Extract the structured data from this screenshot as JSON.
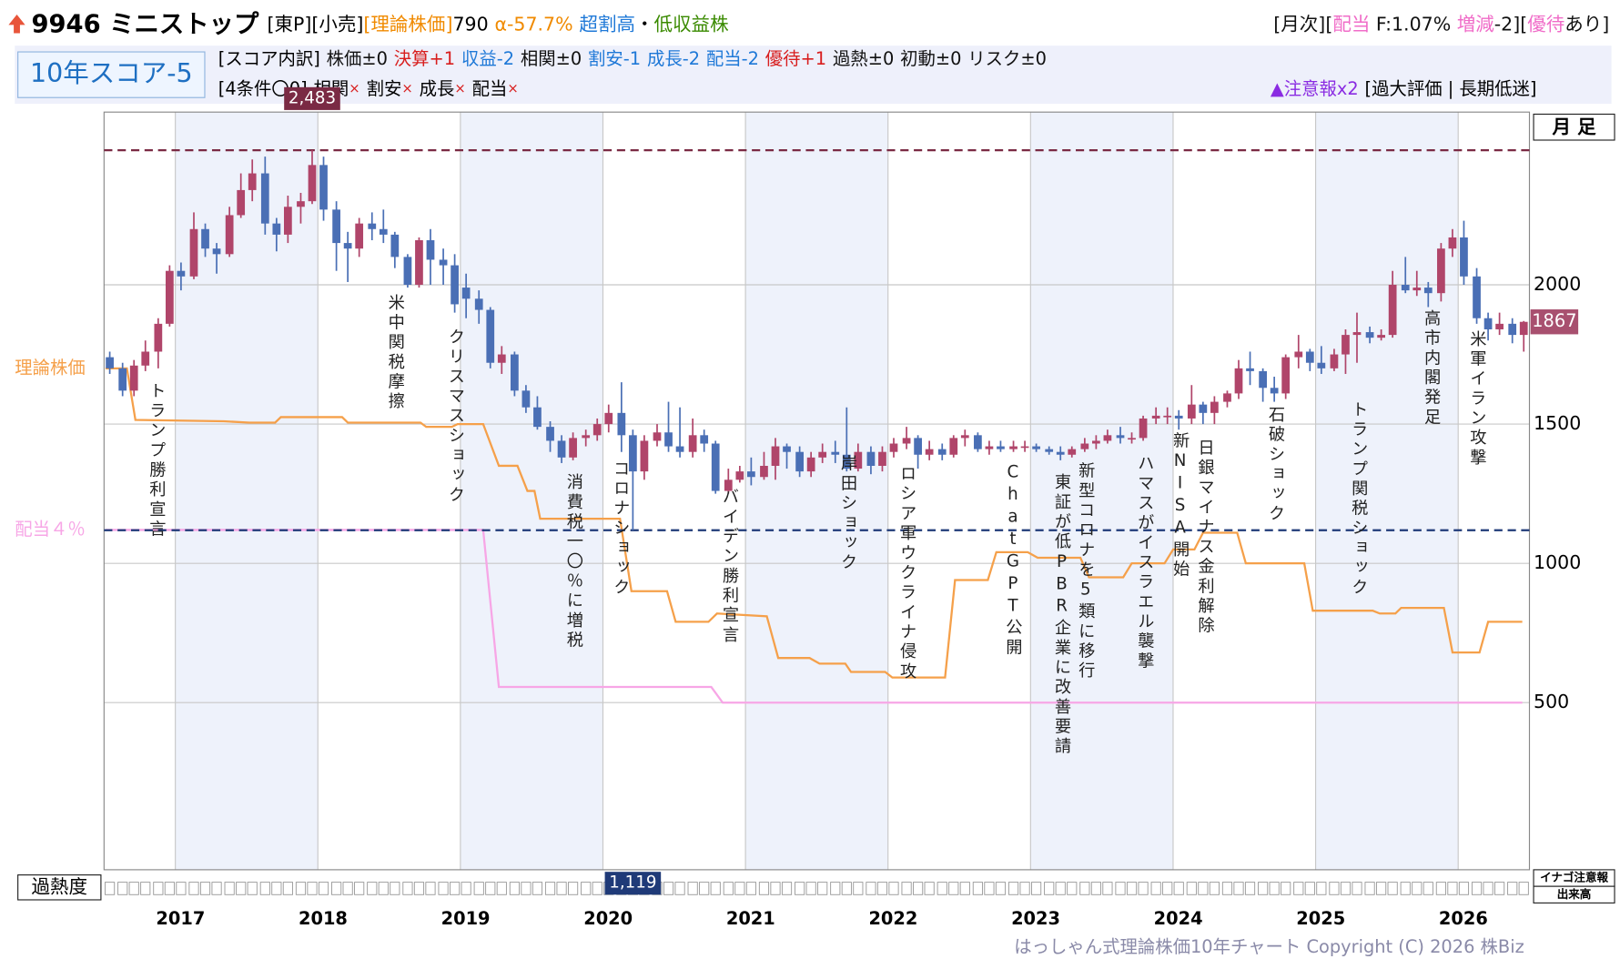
{
  "header": {
    "code_name": "9946 ミニストップ",
    "tags": "[東P][小売]",
    "theory_tag": "[理論株価]",
    "theory_price": "790",
    "alpha": "α-57.7%",
    "valuation": "超割高",
    "dot": "・",
    "profile": "低収益株",
    "monthly": [
      {
        "text": "[月次][",
        "color": "#111"
      },
      {
        "text": "配当",
        "color": "#f06cc8"
      },
      {
        "text": " F:1.07% ",
        "color": "#111"
      },
      {
        "text": "増減",
        "color": "#f06cc8"
      },
      {
        "text": "-2][",
        "color": "#111"
      },
      {
        "text": "優待",
        "color": "#f06cc8"
      },
      {
        "text": "あり]",
        "color": "#111"
      }
    ]
  },
  "score": {
    "badge": "10年スコア-5",
    "breakdown_label": "[スコア内訳]",
    "items": [
      {
        "text": "株価±0",
        "color": "#111"
      },
      {
        "text": "決算+1",
        "color": "#d81e1e"
      },
      {
        "text": "収益-2",
        "color": "#1e78d7"
      },
      {
        "text": "相関±0",
        "color": "#111"
      },
      {
        "text": "割安-1",
        "color": "#1e78d7"
      },
      {
        "text": "成長-2",
        "color": "#1e78d7"
      },
      {
        "text": "配当-2",
        "color": "#1e78d7"
      },
      {
        "text": "優待+1",
        "color": "#d81e1e"
      },
      {
        "text": "過熱±0",
        "color": "#111"
      },
      {
        "text": "初動±0",
        "color": "#111"
      },
      {
        "text": "リスク±0",
        "color": "#111"
      }
    ]
  },
  "conditions": {
    "label": "[4条件〇0]",
    "items": [
      "相関",
      "割安",
      "成長",
      "配当"
    ],
    "mark": "×"
  },
  "warning": {
    "label": "▲注意報x2",
    "detail": "[過大評価 | 長期低迷]"
  },
  "side": {
    "overheat": "過熱度",
    "inago": "イナゴ注意報",
    "volume": "出来高"
  },
  "footer": "はっしゃん式理論株価10年チャート Copyright (C) 2026 株Biz",
  "chart_data": {
    "type": "candlestick",
    "period": "月 足",
    "x": [
      2016.54,
      2016.63,
      2016.71,
      2016.79,
      2016.88,
      2016.96,
      2017.04,
      2017.13,
      2017.21,
      2017.29,
      2017.38,
      2017.46,
      2017.54,
      2017.63,
      2017.71,
      2017.79,
      2017.88,
      2017.96,
      2018.04,
      2018.13,
      2018.21,
      2018.29,
      2018.38,
      2018.46,
      2018.54,
      2018.63,
      2018.71,
      2018.79,
      2018.88,
      2018.96,
      2019.04,
      2019.13,
      2019.21,
      2019.29,
      2019.38,
      2019.46,
      2019.54,
      2019.63,
      2019.71,
      2019.79,
      2019.88,
      2019.96,
      2020.04,
      2020.13,
      2020.21,
      2020.29,
      2020.38,
      2020.46,
      2020.54,
      2020.63,
      2020.71,
      2020.79,
      2020.88,
      2020.96,
      2021.04,
      2021.13,
      2021.21,
      2021.29,
      2021.38,
      2021.46,
      2021.54,
      2021.63,
      2021.71,
      2021.79,
      2021.88,
      2021.96,
      2022.04,
      2022.13,
      2022.21,
      2022.29,
      2022.38,
      2022.46,
      2022.54,
      2022.63,
      2022.71,
      2022.79,
      2022.88,
      2022.96,
      2023.04,
      2023.13,
      2023.21,
      2023.29,
      2023.38,
      2023.46,
      2023.54,
      2023.63,
      2023.71,
      2023.79,
      2023.88,
      2023.96,
      2024.04,
      2024.13,
      2024.21,
      2024.29,
      2024.38,
      2024.46,
      2024.54,
      2024.63,
      2024.71,
      2024.79,
      2024.88,
      2024.96,
      2025.04,
      2025.13,
      2025.21,
      2025.29,
      2025.38,
      2025.46,
      2025.54,
      2025.63,
      2025.71,
      2025.79,
      2025.88,
      2025.96,
      2026.04,
      2026.13,
      2026.21,
      2026.29,
      2026.38,
      2026.46
    ],
    "open": [
      1740,
      1700,
      1620,
      1710,
      1760,
      1860,
      2050,
      2030,
      2200,
      2130,
      2110,
      2250,
      2340,
      2400,
      2220,
      2180,
      2280,
      2300,
      2430,
      2270,
      2150,
      2130,
      2220,
      2200,
      2180,
      2100,
      2000,
      2160,
      2090,
      2070,
      1990,
      1950,
      1910,
      1720,
      1750,
      1620,
      1560,
      1490,
      1440,
      1380,
      1450,
      1460,
      1500,
      1540,
      1460,
      1330,
      1440,
      1470,
      1420,
      1400,
      1460,
      1430,
      1260,
      1300,
      1330,
      1310,
      1350,
      1420,
      1400,
      1330,
      1380,
      1400,
      1390,
      1340,
      1400,
      1350,
      1400,
      1430,
      1450,
      1390,
      1410,
      1390,
      1450,
      1460,
      1410,
      1420,
      1410,
      1420,
      1420,
      1410,
      1400,
      1390,
      1410,
      1430,
      1440,
      1460,
      1450,
      1450,
      1520,
      1530,
      1530,
      1520,
      1570,
      1540,
      1580,
      1610,
      1700,
      1690,
      1630,
      1610,
      1740,
      1760,
      1720,
      1700,
      1750,
      1820,
      1830,
      1810,
      1820,
      2000,
      1980,
      1990,
      1970,
      2130,
      2170,
      2030,
      1880,
      1840,
      1860,
      1820
    ],
    "high": [
      1760,
      1720,
      1730,
      1800,
      1880,
      2070,
      2080,
      2260,
      2220,
      2150,
      2280,
      2400,
      2450,
      2460,
      2240,
      2320,
      2330,
      2483,
      2460,
      2300,
      2190,
      2240,
      2260,
      2270,
      2190,
      2110,
      2170,
      2200,
      2130,
      2110,
      2040,
      1980,
      1920,
      1780,
      1760,
      1640,
      1600,
      1510,
      1460,
      1470,
      1480,
      1520,
      1570,
      1650,
      1480,
      1460,
      1500,
      1580,
      1560,
      1520,
      1480,
      1440,
      1340,
      1350,
      1380,
      1400,
      1450,
      1430,
      1420,
      1400,
      1430,
      1440,
      1560,
      1430,
      1420,
      1420,
      1450,
      1490,
      1460,
      1440,
      1430,
      1460,
      1480,
      1470,
      1440,
      1440,
      1440,
      1440,
      1430,
      1420,
      1420,
      1420,
      1450,
      1460,
      1480,
      1490,
      1470,
      1530,
      1560,
      1560,
      1550,
      1640,
      1580,
      1600,
      1620,
      1730,
      1760,
      1700,
      1670,
      1750,
      1820,
      1770,
      1780,
      1770,
      1840,
      1900,
      1850,
      1840,
      2050,
      2100,
      2050,
      2010,
      2150,
      2200,
      2230,
      2060,
      1900,
      1900,
      1880,
      1870
    ],
    "low": [
      1680,
      1600,
      1600,
      1690,
      1700,
      1850,
      1980,
      2020,
      2100,
      2040,
      2100,
      2240,
      2300,
      2180,
      2120,
      2150,
      2220,
      2290,
      2230,
      2050,
      2010,
      2100,
      2160,
      2150,
      2060,
      1990,
      1990,
      2000,
      2000,
      1900,
      1880,
      1860,
      1700,
      1680,
      1600,
      1540,
      1480,
      1400,
      1360,
      1370,
      1420,
      1440,
      1470,
      1400,
      1119,
      1300,
      1420,
      1400,
      1380,
      1380,
      1400,
      1250,
      1250,
      1290,
      1280,
      1300,
      1300,
      1340,
      1310,
      1310,
      1360,
      1360,
      1330,
      1330,
      1320,
      1330,
      1380,
      1410,
      1340,
      1370,
      1370,
      1380,
      1420,
      1400,
      1390,
      1400,
      1400,
      1400,
      1400,
      1390,
      1370,
      1380,
      1400,
      1410,
      1430,
      1430,
      1430,
      1440,
      1500,
      1500,
      1480,
      1500,
      1500,
      1500,
      1560,
      1590,
      1640,
      1580,
      1580,
      1590,
      1700,
      1690,
      1680,
      1690,
      1680,
      1720,
      1790,
      1800,
      1810,
      1970,
      1960,
      1920,
      1940,
      2100,
      2000,
      1860,
      1800,
      1820,
      1790,
      1760
    ],
    "close": [
      1700,
      1620,
      1710,
      1760,
      1860,
      2050,
      2030,
      2200,
      2130,
      2110,
      2250,
      2340,
      2400,
      2220,
      2180,
      2280,
      2300,
      2430,
      2270,
      2150,
      2130,
      2220,
      2200,
      2180,
      2100,
      2000,
      2160,
      2090,
      2070,
      1930,
      1950,
      1910,
      1720,
      1750,
      1620,
      1560,
      1490,
      1440,
      1380,
      1450,
      1460,
      1500,
      1540,
      1460,
      1330,
      1440,
      1470,
      1420,
      1400,
      1460,
      1430,
      1260,
      1300,
      1330,
      1310,
      1350,
      1420,
      1400,
      1330,
      1380,
      1400,
      1390,
      1340,
      1400,
      1350,
      1400,
      1430,
      1450,
      1390,
      1410,
      1390,
      1450,
      1460,
      1410,
      1420,
      1410,
      1420,
      1420,
      1410,
      1400,
      1390,
      1410,
      1430,
      1440,
      1460,
      1450,
      1450,
      1520,
      1530,
      1530,
      1520,
      1570,
      1540,
      1580,
      1610,
      1700,
      1690,
      1630,
      1610,
      1740,
      1760,
      1720,
      1700,
      1750,
      1820,
      1830,
      1810,
      1820,
      2000,
      1980,
      1990,
      1970,
      2130,
      2170,
      2030,
      1880,
      1840,
      1860,
      1820,
      1867
    ],
    "up_color": "#b0456a",
    "down_color": "#4a6fb5",
    "xlim": [
      2016.5,
      2026.5
    ],
    "xticks": [
      2017,
      2018,
      2019,
      2020,
      2021,
      2022,
      2023,
      2024,
      2025,
      2026
    ],
    "ylim": [
      -100,
      2620
    ],
    "yticks": [
      500,
      1000,
      1500,
      2000
    ],
    "grid": true,
    "max": {
      "value": 2483,
      "label": "2,483",
      "color": "#7a2a44"
    },
    "min": {
      "value": 1119,
      "label": "1,119",
      "color": "#1f3a78"
    },
    "last": 1867,
    "theory": {
      "name": "理論株価",
      "color": "#f5a04a",
      "x": [
        2016.51,
        2016.66,
        2016.72,
        2017.34,
        2017.52,
        2017.7,
        2017.74,
        2018.17,
        2018.21,
        2018.72,
        2018.76,
        2018.94,
        2018.98,
        2019.16,
        2019.27,
        2019.4,
        2019.47,
        2019.52,
        2019.56,
        2020.12,
        2020.2,
        2020.45,
        2020.51,
        2020.74,
        2020.8,
        2021.15,
        2021.23,
        2021.45,
        2021.52,
        2021.7,
        2021.74,
        2021.98,
        2022.03,
        2022.4,
        2022.47,
        2022.7,
        2022.76,
        2022.98,
        2023.05,
        2023.35,
        2023.41,
        2023.65,
        2023.71,
        2023.94,
        2024.0,
        2024.15,
        2024.21,
        2024.45,
        2024.51,
        2024.92,
        2024.98,
        2025.4,
        2025.45,
        2025.56,
        2025.6,
        2025.9,
        2025.96,
        2026.15,
        2026.21,
        2026.45
      ],
      "values": [
        1700,
        1700,
        1515,
        1510,
        1505,
        1505,
        1525,
        1525,
        1505,
        1505,
        1490,
        1490,
        1500,
        1500,
        1350,
        1350,
        1260,
        1260,
        1160,
        1160,
        900,
        900,
        790,
        790,
        820,
        810,
        660,
        660,
        640,
        640,
        610,
        610,
        590,
        590,
        940,
        940,
        1040,
        1040,
        1020,
        1020,
        950,
        950,
        1000,
        1000,
        1050,
        1050,
        1110,
        1110,
        1000,
        1000,
        830,
        830,
        820,
        820,
        840,
        840,
        680,
        680,
        790,
        790
      ]
    },
    "dividend": {
      "name": "配当４％",
      "color": "#f7a6e6",
      "x": [
        2016.51,
        2019.16,
        2019.27,
        2020.76,
        2020.84,
        2026.45
      ],
      "values": [
        1120,
        1120,
        556,
        556,
        500,
        500
      ]
    },
    "annotations": [
      "トランプ勝利宣言",
      "米中関税摩擦",
      "クリスマスショック",
      "消費税一〇％に増税",
      "コロナショック",
      "バイデン勝利宣言",
      "岸田ショック",
      "ロシア軍ウクライナ侵攻",
      "ChatGPT公開",
      "東証が低PBR企業に改善要請",
      "新型コロナを5類に移行",
      "ハマスがイスラエル襲撃",
      "新NISA開始",
      "日銀マイナス金利解除",
      "石破ショック",
      "トランプ関税ショック",
      "高市内閣発足",
      "米軍イラン攻撃"
    ]
  }
}
